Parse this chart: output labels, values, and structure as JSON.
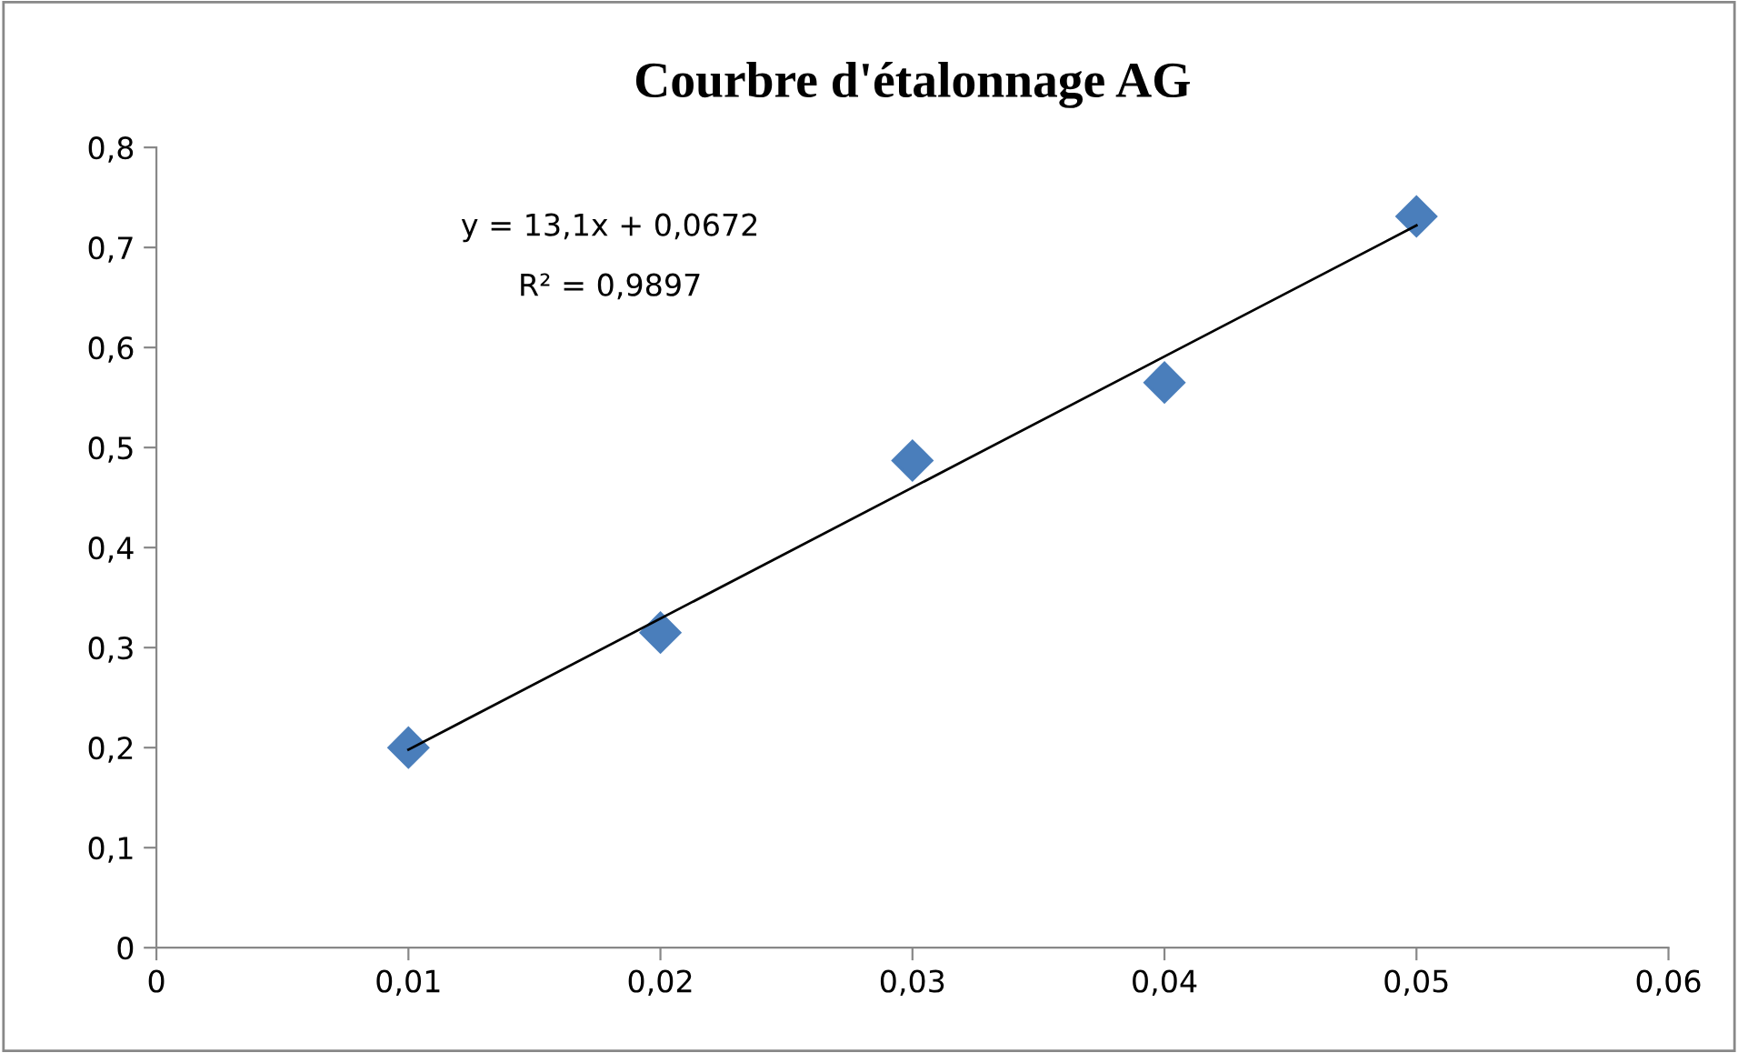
{
  "chart_data": {
    "type": "scatter",
    "title": "Courbre d'étalonnage AG",
    "marker": "diamond",
    "grid": false,
    "legend": false,
    "x": [
      0.01,
      0.02,
      0.03,
      0.04,
      0.05
    ],
    "series": [
      {
        "color": "#4a7ebb",
        "values": [
          0.2,
          0.315,
          0.487,
          0.565,
          0.731
        ]
      },
      {
        "type": "line",
        "color": "#000000",
        "x": [
          0.01,
          0.05
        ],
        "values": [
          0.198,
          0.722
        ],
        "marker": "none"
      }
    ],
    "xlim": [
      0,
      0.06
    ],
    "ylim": [
      0,
      0.8
    ],
    "xticks": [
      0,
      {
        "value": 0.01,
        "label": "0,01"
      },
      {
        "value": 0.02,
        "label": "0,02"
      },
      {
        "value": 0.03,
        "label": "0,03"
      },
      {
        "value": 0.04,
        "label": "0,04"
      },
      {
        "value": 0.05,
        "label": "0,05"
      },
      {
        "value": 0.06,
        "label": "0,06"
      }
    ],
    "yticks": [
      0,
      {
        "value": 0.1,
        "label": "0,1"
      },
      {
        "value": 0.2,
        "label": "0,2"
      },
      {
        "value": 0.3,
        "label": "0,3"
      },
      {
        "value": 0.4,
        "label": "0,4"
      },
      {
        "value": 0.5,
        "label": "0,5"
      },
      {
        "value": 0.6,
        "label": "0,6"
      },
      {
        "value": 0.7,
        "label": "0,7"
      },
      {
        "value": 0.8,
        "label": "0,8"
      }
    ],
    "annotations": [
      "y = 13,1x + 0,0672",
      "R² = 0,9897"
    ]
  }
}
